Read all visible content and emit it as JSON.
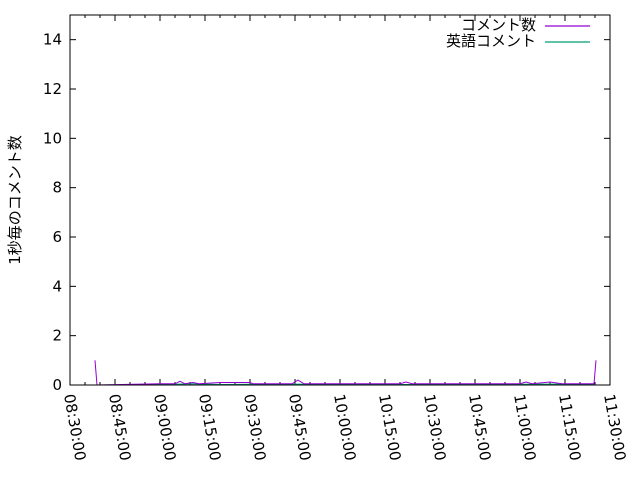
{
  "chart_data": {
    "type": "line",
    "title": "",
    "xlabel": "",
    "ylabel": "1秒毎のコメント数",
    "xlim": [
      "08:30:00",
      "11:30:00"
    ],
    "ylim": [
      0,
      15
    ],
    "x_ticks": [
      "08:30:00",
      "08:45:00",
      "09:00:00",
      "09:15:00",
      "09:30:00",
      "09:45:00",
      "10:00:00",
      "10:15:00",
      "10:30:00",
      "10:45:00",
      "11:00:00",
      "11:15:00",
      "11:30:00"
    ],
    "y_ticks": [
      "0",
      "2",
      "4",
      "6",
      "8",
      "10",
      "12",
      "14"
    ],
    "grid": false,
    "legend_position": "top-right",
    "series": [
      {
        "name": "コメント数",
        "color": "#9400d3",
        "points": [
          [
            "08:38:20",
            1.0
          ],
          [
            "08:39:00",
            0
          ],
          [
            "09:00:00",
            0.05
          ],
          [
            "09:05:00",
            0.05
          ],
          [
            "09:06:40",
            0.15
          ],
          [
            "09:08:20",
            0.05
          ],
          [
            "09:11:00",
            0.1
          ],
          [
            "09:13:00",
            0.05
          ],
          [
            "09:20:00",
            0.1
          ],
          [
            "09:30:00",
            0.1
          ],
          [
            "09:31:00",
            0.05
          ],
          [
            "09:44:00",
            0.05
          ],
          [
            "09:46:00",
            0.2
          ],
          [
            "09:48:00",
            0.05
          ],
          [
            "10:00:00",
            0.05
          ],
          [
            "10:20:00",
            0.05
          ],
          [
            "10:22:00",
            0.12
          ],
          [
            "10:24:00",
            0.05
          ],
          [
            "10:40:00",
            0.05
          ],
          [
            "11:00:00",
            0.05
          ],
          [
            "11:02:00",
            0.12
          ],
          [
            "11:04:00",
            0.05
          ],
          [
            "11:10:00",
            0.12
          ],
          [
            "11:14:00",
            0.05
          ],
          [
            "11:20:00",
            0.05
          ],
          [
            "11:24:40",
            0.05
          ],
          [
            "11:25:20",
            1.0
          ]
        ]
      },
      {
        "name": "英語コメント",
        "color": "#009e73",
        "points": [
          [
            "08:39:00",
            0
          ],
          [
            "09:05:00",
            0.03
          ],
          [
            "09:10:00",
            0.05
          ],
          [
            "09:20:00",
            0.02
          ],
          [
            "09:40:00",
            0.04
          ],
          [
            "10:00:00",
            0.02
          ],
          [
            "10:30:00",
            0.02
          ],
          [
            "11:00:00",
            0.03
          ],
          [
            "11:20:00",
            0.04
          ],
          [
            "11:24:40",
            0.02
          ]
        ]
      }
    ]
  }
}
